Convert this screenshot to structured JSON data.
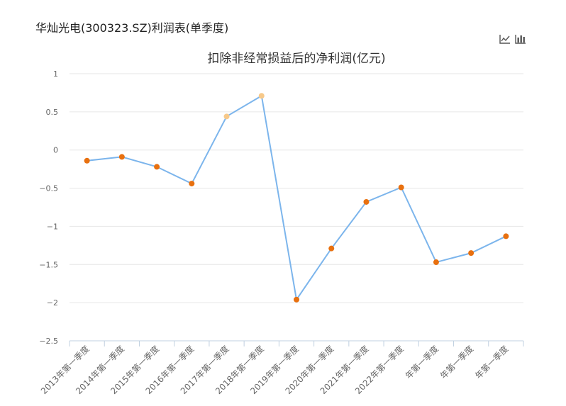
{
  "page": {
    "title": "华灿光电(300323.SZ)利润表(单季度)"
  },
  "toolbar": {
    "line_icon": "line-chart-icon",
    "bar_icon": "bar-chart-icon"
  },
  "chart_data": {
    "type": "line",
    "title": "扣除非经常损益后的净利润(亿元)",
    "xlabel": "",
    "ylabel": "",
    "ylim": [
      -2.5,
      1
    ],
    "yticks": [
      1,
      0.5,
      0,
      -0.5,
      -1,
      -1.5,
      -2,
      -2.5
    ],
    "ytick_labels": [
      "1",
      "0.5",
      "0",
      "−0.5",
      "−1",
      "−1.5",
      "−2",
      "−2.5"
    ],
    "grid": true,
    "categories": [
      "2013年第一季度",
      "2014年第一季度",
      "2015年第一季度",
      "2016年第一季度",
      "2017年第一季度",
      "2018年第一季度",
      "2019年第一季度",
      "2020年第一季度",
      "2021年第一季度",
      "2022年第一季度",
      "年第一季度",
      "年第一季度",
      "年第一季度"
    ],
    "series": [
      {
        "values": [
          -0.14,
          -0.09,
          -0.22,
          -0.44,
          0.44,
          0.71,
          -1.96,
          -1.29,
          -0.68,
          -0.49,
          -1.47,
          -1.35,
          -1.13
        ]
      }
    ],
    "colors": {
      "line": "#7cb5ec",
      "point_negative": "#e8700f",
      "point_positive": "#f7c98a",
      "grid": "#e6e6e6",
      "axis": "#c0d0e0"
    }
  }
}
